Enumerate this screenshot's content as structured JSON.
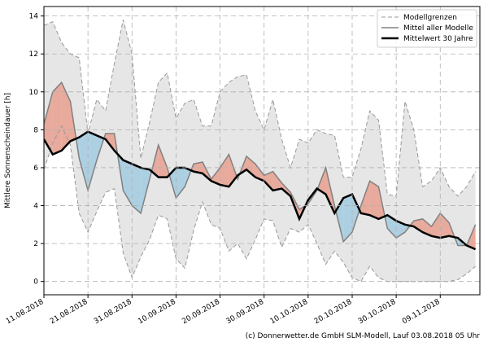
{
  "chart_data": {
    "type": "line",
    "ylabel": "Mittlere Sonnenscheindauer [h]",
    "footer": "(c) Donnerwetter.de GmbH SLM-Modell, Lauf 03.08.2018 05 Uhr",
    "x": [
      "2018-08-11",
      "2018-08-13",
      "2018-08-15",
      "2018-08-17",
      "2018-08-19",
      "2018-08-21",
      "2018-08-23",
      "2018-08-25",
      "2018-08-27",
      "2018-08-29",
      "2018-08-31",
      "2018-09-02",
      "2018-09-04",
      "2018-09-06",
      "2018-09-08",
      "2018-09-10",
      "2018-09-12",
      "2018-09-14",
      "2018-09-16",
      "2018-09-18",
      "2018-09-20",
      "2018-09-22",
      "2018-09-24",
      "2018-09-26",
      "2018-09-28",
      "2018-09-30",
      "2018-10-02",
      "2018-10-04",
      "2018-10-06",
      "2018-10-08",
      "2018-10-10",
      "2018-10-12",
      "2018-10-14",
      "2018-10-16",
      "2018-10-18",
      "2018-10-20",
      "2018-10-22",
      "2018-10-24",
      "2018-10-26",
      "2018-10-28",
      "2018-10-30",
      "2018-11-01",
      "2018-11-03",
      "2018-11-05",
      "2018-11-07",
      "2018-11-09",
      "2018-11-11",
      "2018-11-13",
      "2018-11-15",
      "2018-11-17"
    ],
    "series": [
      {
        "name": "Modellgrenzen",
        "color": "#999999",
        "fill": "#e6e6e6",
        "upper": [
          13.5,
          13.7,
          12.6,
          12.0,
          11.8,
          7.8,
          9.6,
          9.0,
          11.5,
          13.8,
          12.0,
          6.5,
          8.4,
          10.5,
          11.0,
          8.6,
          9.4,
          9.6,
          8.2,
          8.2,
          10.0,
          10.5,
          10.8,
          10.9,
          9.0,
          8.0,
          9.6,
          7.5,
          6.0,
          7.5,
          7.3,
          8.0,
          7.8,
          7.7,
          5.5,
          5.5,
          7.0,
          9.0,
          8.5,
          4.6,
          4.5,
          9.5,
          8.0,
          5.0,
          5.3,
          6.0,
          5.0,
          4.5,
          5.0,
          5.8
        ],
        "lower": [
          5.9,
          7.3,
          8.2,
          7.2,
          3.6,
          2.6,
          3.7,
          4.7,
          4.9,
          1.5,
          0.2,
          1.3,
          2.2,
          3.5,
          3.3,
          1.2,
          0.7,
          2.7,
          4.2,
          3.0,
          2.8,
          1.6,
          2.0,
          1.2,
          2.2,
          3.3,
          3.2,
          1.8,
          2.8,
          2.6,
          3.0,
          2.0,
          0.9,
          1.6,
          1.0,
          0.2,
          0.0,
          0.8,
          0.2,
          0.0,
          0.0,
          0.0,
          0.0,
          0.0,
          0.0,
          0.0,
          0.0,
          0.1,
          0.4,
          0.8
        ]
      },
      {
        "name": "Mittel aller Modelle",
        "color": "#808080",
        "values": [
          8.3,
          10.0,
          10.5,
          9.5,
          6.5,
          4.8,
          6.4,
          7.8,
          7.8,
          4.8,
          4.0,
          3.6,
          5.4,
          7.2,
          6.0,
          4.4,
          5.0,
          6.2,
          6.3,
          5.4,
          6.0,
          6.7,
          5.4,
          6.6,
          6.2,
          5.6,
          5.8,
          5.2,
          4.7,
          3.8,
          4.1,
          4.8,
          6.0,
          4.0,
          2.1,
          2.6,
          4.0,
          5.3,
          5.0,
          2.8,
          2.3,
          2.6,
          3.2,
          3.3,
          2.9,
          3.6,
          3.1,
          1.9,
          1.9,
          3.0
        ]
      },
      {
        "name": "Mittelwert 30 Jahre",
        "color": "#000000",
        "values": [
          7.5,
          6.7,
          6.9,
          7.4,
          7.6,
          7.9,
          7.7,
          7.5,
          6.9,
          6.4,
          6.2,
          6.0,
          5.9,
          5.5,
          5.5,
          6.0,
          6.0,
          5.8,
          5.7,
          5.3,
          5.1,
          5.0,
          5.6,
          5.9,
          5.5,
          5.3,
          4.8,
          4.9,
          4.5,
          3.3,
          4.3,
          4.9,
          4.6,
          3.6,
          4.4,
          4.6,
          3.6,
          3.5,
          3.3,
          3.5,
          3.2,
          3.0,
          2.9,
          2.6,
          2.4,
          2.3,
          2.4,
          2.3,
          1.9,
          1.7
        ]
      }
    ],
    "above_color": "#e8aa9c",
    "below_color": "#acd0e2",
    "xlim": [
      "2018-08-11",
      "2018-11-18"
    ],
    "xticks": [
      {
        "value": "2018-08-11",
        "label": "11.08.2018"
      },
      {
        "value": "2018-08-21",
        "label": "21.08.2018"
      },
      {
        "value": "2018-08-31",
        "label": "31.08.2018"
      },
      {
        "value": "2018-09-10",
        "label": "10.09.2018"
      },
      {
        "value": "2018-09-20",
        "label": "20.09.2018"
      },
      {
        "value": "2018-09-30",
        "label": "30.09.2018"
      },
      {
        "value": "2018-10-10",
        "label": "10.10.2018"
      },
      {
        "value": "2018-10-20",
        "label": "20.10.2018"
      },
      {
        "value": "2018-10-30",
        "label": "30.10.2018"
      },
      {
        "value": "2018-11-09",
        "label": "09.11.2018"
      }
    ],
    "ylim": [
      -0.7,
      14.5
    ],
    "yticks": [
      0,
      2,
      4,
      6,
      8,
      10,
      12,
      14
    ],
    "grid": true,
    "legend": "upper right"
  }
}
